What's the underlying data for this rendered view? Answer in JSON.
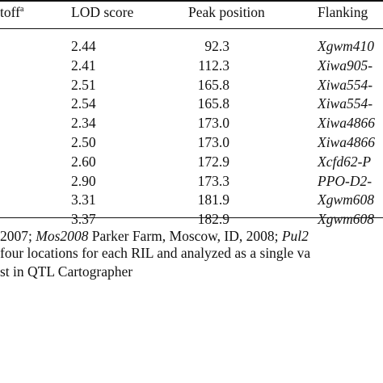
{
  "table": {
    "headers": {
      "cutoff": "toff",
      "cutoff_sup": "a",
      "lod": "LOD score",
      "peak": "Peak position",
      "flanking": "Flanking"
    },
    "rows": [
      {
        "lod": "2.44",
        "peak": "92.3",
        "flanking": "Xgwm410"
      },
      {
        "lod": "2.41",
        "peak": "112.3",
        "flanking": "Xiwa905-"
      },
      {
        "lod": "2.51",
        "peak": "165.8",
        "flanking": "Xiwa554-"
      },
      {
        "lod": "2.54",
        "peak": "165.8",
        "flanking": "Xiwa554-"
      },
      {
        "lod": "2.34",
        "peak": "173.0",
        "flanking": "Xiwa4866"
      },
      {
        "lod": "2.50",
        "peak": "173.0",
        "flanking": "Xiwa4866"
      },
      {
        "lod": "2.60",
        "peak": "172.9",
        "flanking": "Xcfd62-P"
      },
      {
        "lod": "2.90",
        "peak": "173.3",
        "flanking": "PPO-D2-"
      },
      {
        "lod": "3.31",
        "peak": "181.9",
        "flanking": "Xgwm608"
      },
      {
        "lod": "3.37",
        "peak": "182.9",
        "flanking": "Xgwm608"
      }
    ]
  },
  "footnotes": {
    "line1_a": "2007; ",
    "line1_b": "Mos2008",
    "line1_c": " Parker Farm, Moscow, ID, 2008; ",
    "line1_d": "Pul2",
    "line2": " four locations for each RIL and analyzed as a single va",
    "line3": "st in QTL Cartographer"
  }
}
